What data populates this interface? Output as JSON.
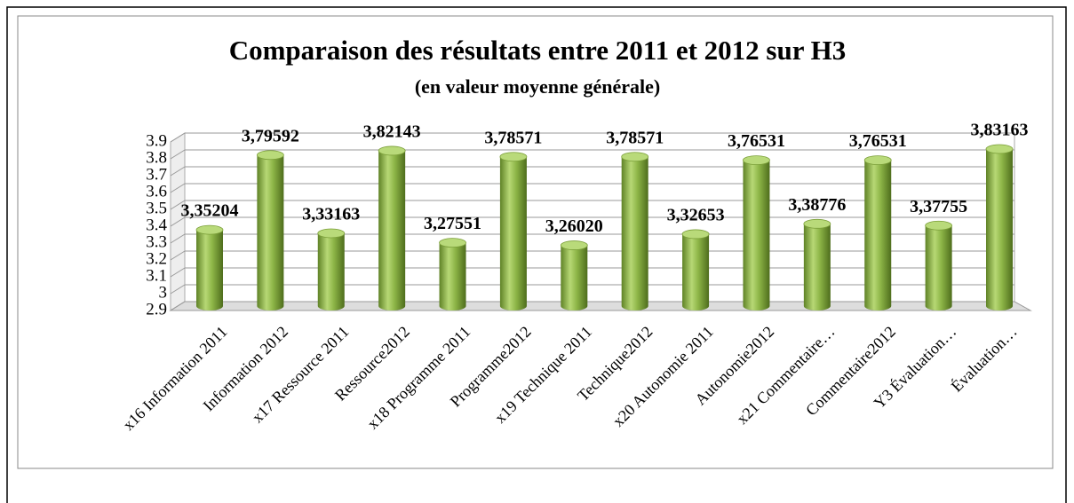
{
  "chart_data": {
    "type": "bar",
    "title": "Comparaison des résultats entre 2011 et 2012 sur H3",
    "subtitle": "(en valeur moyenne générale)",
    "categories": [
      "x16 Information 2011",
      "Information 2012",
      "x17 Ressource 2011",
      "Ressource2012",
      "x18 Programme 2011",
      "Programme2012",
      "x19 Technique 2011",
      "Technique2012",
      "x20 Autonomie 2011",
      "Autonomie2012",
      "x21 Commentaire…",
      "Commentaire2012",
      "Y3 Évaluation…",
      "Évaluation…"
    ],
    "values": [
      3.35204,
      3.79592,
      3.33163,
      3.82143,
      3.27551,
      3.78571,
      3.2602,
      3.78571,
      3.32653,
      3.76531,
      3.38776,
      3.76531,
      3.37755,
      3.83163
    ],
    "value_labels": [
      "3,35204",
      "3,79592",
      "3,33163",
      "3,82143",
      "3,27551",
      "3,78571",
      "3,26020",
      "3,78571",
      "3,32653",
      "3,76531",
      "3,38776",
      "3,76531",
      "3,37755",
      "3,83163"
    ],
    "color": "#8db547",
    "ylim": [
      2.9,
      3.9
    ],
    "yticks": [
      2.9,
      3,
      3.1,
      3.2,
      3.3,
      3.4,
      3.5,
      3.6,
      3.7,
      3.8,
      3.9
    ],
    "grid": true
  }
}
